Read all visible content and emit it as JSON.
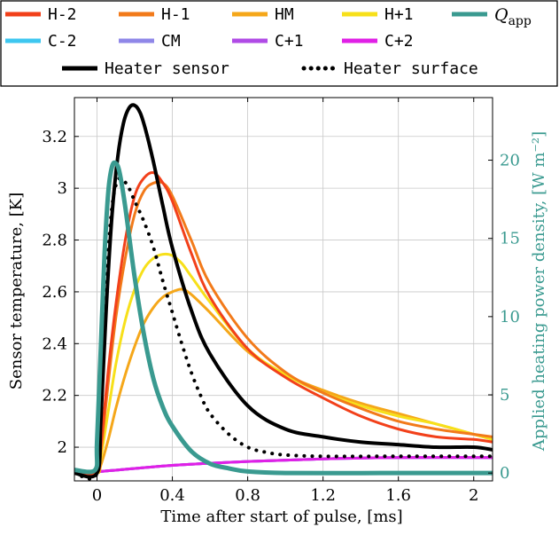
{
  "chart_data": {
    "type": "line",
    "xlabel": "Time after start of pulse, [ms]",
    "ylabel_left": "Sensor temperature, [K]",
    "ylabel_right": "Applied heating power density, [W m⁻²]",
    "xlim": [
      -0.12,
      2.1
    ],
    "ylim_left": [
      1.87,
      3.35
    ],
    "ylim_right": [
      -0.5,
      24.0
    ],
    "x_ticks": [
      0,
      0.4,
      0.8,
      1.2,
      1.6,
      2
    ],
    "x_tick_labels": [
      "0",
      "0.4",
      "0.8",
      "1.2",
      "1.6",
      "2"
    ],
    "y_left_ticks": [
      2,
      2.2,
      2.4,
      2.6,
      2.8,
      3,
      3.2
    ],
    "y_left_tick_labels": [
      "2",
      "2.2",
      "2.4",
      "2.6",
      "2.8",
      "3",
      "3.2"
    ],
    "y_right_ticks": [
      0,
      5,
      10,
      15,
      20
    ],
    "y_right_tick_labels": [
      "0",
      "5",
      "10",
      "15",
      "20"
    ],
    "grid": true,
    "legend_position": "top",
    "series": [
      {
        "name": "H-2",
        "axis": "left",
        "color": "#f2401a",
        "style": "solid",
        "x": [
          -0.12,
          0.0,
          0.02,
          0.06,
          0.1,
          0.15,
          0.2,
          0.25,
          0.3,
          0.35,
          0.4,
          0.5,
          0.6,
          0.8,
          1.0,
          1.2,
          1.4,
          1.6,
          1.8,
          2.0,
          2.1
        ],
        "y": [
          1.9,
          1.9,
          2.0,
          2.3,
          2.55,
          2.8,
          2.97,
          3.04,
          3.06,
          3.02,
          2.95,
          2.75,
          2.58,
          2.38,
          2.27,
          2.19,
          2.12,
          2.07,
          2.04,
          2.03,
          2.02
        ]
      },
      {
        "name": "H-1",
        "axis": "left",
        "color": "#f27a1a",
        "style": "solid",
        "x": [
          -0.12,
          0.0,
          0.02,
          0.06,
          0.1,
          0.15,
          0.2,
          0.25,
          0.3,
          0.35,
          0.4,
          0.5,
          0.6,
          0.8,
          1.0,
          1.2,
          1.4,
          1.6,
          1.8,
          2.0,
          2.1
        ],
        "y": [
          1.9,
          1.9,
          1.98,
          2.25,
          2.5,
          2.73,
          2.9,
          2.99,
          3.02,
          3.02,
          2.97,
          2.8,
          2.63,
          2.42,
          2.29,
          2.21,
          2.15,
          2.1,
          2.07,
          2.05,
          2.04
        ]
      },
      {
        "name": "HM",
        "axis": "left",
        "color": "#f5a71a",
        "style": "solid",
        "x": [
          -0.12,
          0.0,
          0.02,
          0.06,
          0.1,
          0.15,
          0.2,
          0.25,
          0.3,
          0.35,
          0.4,
          0.45,
          0.5,
          0.6,
          0.8,
          1.0,
          1.2,
          1.4,
          1.6,
          1.8,
          2.0,
          2.1
        ],
        "y": [
          1.9,
          1.9,
          1.93,
          2.03,
          2.15,
          2.28,
          2.39,
          2.48,
          2.54,
          2.58,
          2.6,
          2.61,
          2.59,
          2.52,
          2.37,
          2.28,
          2.22,
          2.17,
          2.13,
          2.09,
          2.05,
          2.03
        ]
      },
      {
        "name": "H+1",
        "axis": "left",
        "color": "#f7e01a",
        "style": "solid",
        "x": [
          -0.12,
          0.0,
          0.02,
          0.06,
          0.1,
          0.15,
          0.2,
          0.25,
          0.3,
          0.35,
          0.4,
          0.45,
          0.5,
          0.6,
          0.8,
          1.0,
          1.2,
          1.4,
          1.6,
          1.8,
          2.0,
          2.1
        ],
        "y": [
          1.9,
          1.9,
          1.96,
          2.14,
          2.32,
          2.49,
          2.61,
          2.69,
          2.73,
          2.745,
          2.74,
          2.71,
          2.66,
          2.56,
          2.38,
          2.28,
          2.21,
          2.16,
          2.12,
          2.09,
          2.05,
          2.03
        ]
      },
      {
        "name": "C-2",
        "axis": "left",
        "color": "#3ec7f0",
        "style": "solid",
        "x": [
          -0.12,
          0.0,
          0.4,
          0.8,
          1.2,
          1.6,
          2.1
        ],
        "y": [
          1.9,
          1.905,
          1.93,
          1.945,
          1.955,
          1.96,
          1.96
        ]
      },
      {
        "name": "CM",
        "axis": "left",
        "color": "#8f87e8",
        "style": "solid",
        "x": [
          -0.12,
          0.0,
          0.4,
          0.8,
          1.2,
          1.6,
          2.1
        ],
        "y": [
          1.9,
          1.905,
          1.93,
          1.945,
          1.955,
          1.96,
          1.96
        ]
      },
      {
        "name": "C+1",
        "axis": "left",
        "color": "#b04be6",
        "style": "solid",
        "x": [
          -0.12,
          0.0,
          0.4,
          0.8,
          1.2,
          1.6,
          2.1
        ],
        "y": [
          1.9,
          1.905,
          1.93,
          1.945,
          1.955,
          1.96,
          1.96
        ]
      },
      {
        "name": "C+2",
        "axis": "left",
        "color": "#e020e6",
        "style": "solid",
        "x": [
          -0.12,
          0.0,
          0.4,
          0.8,
          1.2,
          1.6,
          2.1
        ],
        "y": [
          1.9,
          1.905,
          1.93,
          1.945,
          1.955,
          1.96,
          1.96
        ]
      },
      {
        "name": "Heater sensor",
        "axis": "left",
        "color": "#000000",
        "style": "solid",
        "x": [
          -0.12,
          0.0,
          0.02,
          0.05,
          0.08,
          0.11,
          0.14,
          0.17,
          0.2,
          0.23,
          0.26,
          0.3,
          0.35,
          0.4,
          0.5,
          0.6,
          0.8,
          1.0,
          1.2,
          1.4,
          1.6,
          1.8,
          2.0,
          2.1
        ],
        "y": [
          1.9,
          1.9,
          2.1,
          2.55,
          2.9,
          3.12,
          3.25,
          3.31,
          3.32,
          3.29,
          3.22,
          3.1,
          2.93,
          2.77,
          2.53,
          2.36,
          2.16,
          2.07,
          2.04,
          2.02,
          2.01,
          2.0,
          2.0,
          1.99
        ]
      },
      {
        "name": "Heater surface",
        "axis": "left",
        "color": "#000000",
        "style": "dotted",
        "x": [
          -0.12,
          0.0,
          0.02,
          0.05,
          0.08,
          0.11,
          0.14,
          0.17,
          0.2,
          0.25,
          0.3,
          0.35,
          0.4,
          0.45,
          0.5,
          0.55,
          0.6,
          0.7,
          0.8,
          0.9,
          1.0,
          1.2,
          1.6,
          2.1
        ],
        "y": [
          1.9,
          1.9,
          2.2,
          2.65,
          2.93,
          3.03,
          3.03,
          3.0,
          2.95,
          2.87,
          2.77,
          2.64,
          2.52,
          2.4,
          2.29,
          2.2,
          2.13,
          2.05,
          2.0,
          1.98,
          1.97,
          1.965,
          1.965,
          1.965
        ]
      },
      {
        "name": "Q_app",
        "axis": "right",
        "color": "#3a9a90",
        "style": "solid",
        "x": [
          -0.12,
          -0.01,
          0.0,
          0.02,
          0.04,
          0.06,
          0.08,
          0.1,
          0.12,
          0.15,
          0.2,
          0.25,
          0.3,
          0.35,
          0.4,
          0.5,
          0.6,
          0.7,
          0.8,
          1.0,
          1.5,
          2.1
        ],
        "y": [
          0.2,
          0.2,
          2.0,
          8.0,
          14.0,
          18.0,
          19.6,
          19.8,
          19.2,
          17.0,
          12.5,
          8.8,
          6.0,
          4.2,
          3.0,
          1.4,
          0.6,
          0.3,
          0.1,
          0.0,
          0.0,
          0.0
        ]
      }
    ]
  },
  "legend": {
    "row1": [
      {
        "label": "H-2",
        "color": "#f2401a",
        "style": "solid"
      },
      {
        "label": "H-1",
        "color": "#f27a1a",
        "style": "solid"
      },
      {
        "label": "HM",
        "color": "#f5a71a",
        "style": "solid"
      },
      {
        "label": "H+1",
        "color": "#f7e01a",
        "style": "solid"
      },
      {
        "label": "Q",
        "sub": "app",
        "color": "#3a9a90",
        "style": "solid"
      }
    ],
    "row2": [
      {
        "label": "C-2",
        "color": "#3ec7f0",
        "style": "solid"
      },
      {
        "label": "CM",
        "color": "#8f87e8",
        "style": "solid"
      },
      {
        "label": "C+1",
        "color": "#b04be6",
        "style": "solid"
      },
      {
        "label": "C+2",
        "color": "#e020e6",
        "style": "solid"
      }
    ],
    "row3": [
      {
        "label": "Heater sensor",
        "color": "#000000",
        "style": "solid"
      },
      {
        "label": "Heater surface",
        "color": "#000000",
        "style": "dotted"
      }
    ]
  }
}
